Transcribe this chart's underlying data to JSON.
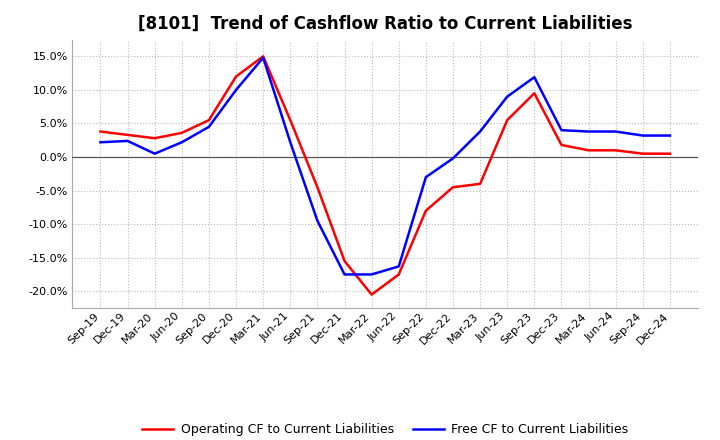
{
  "title": "[8101]  Trend of Cashflow Ratio to Current Liabilities",
  "x_labels": [
    "Sep-19",
    "Dec-19",
    "Mar-20",
    "Jun-20",
    "Sep-20",
    "Dec-20",
    "Mar-21",
    "Jun-21",
    "Sep-21",
    "Dec-21",
    "Mar-22",
    "Jun-22",
    "Sep-22",
    "Dec-22",
    "Mar-23",
    "Jun-23",
    "Sep-23",
    "Dec-23",
    "Mar-24",
    "Jun-24",
    "Sep-24",
    "Dec-24"
  ],
  "operating_cf": [
    0.038,
    0.033,
    0.028,
    0.036,
    0.055,
    0.12,
    0.15,
    0.055,
    -0.045,
    -0.155,
    -0.205,
    -0.175,
    -0.08,
    -0.045,
    -0.04,
    0.055,
    0.095,
    0.018,
    0.01,
    0.01,
    0.005,
    0.005
  ],
  "free_cf": [
    0.022,
    0.024,
    0.005,
    0.022,
    0.045,
    0.1,
    0.148,
    0.022,
    -0.095,
    -0.175,
    -0.175,
    -0.163,
    -0.03,
    -0.002,
    0.038,
    0.09,
    0.119,
    0.04,
    0.038,
    0.038,
    0.032,
    0.032
  ],
  "operating_color": "#ff0000",
  "free_color": "#0000ff",
  "ylim": [
    -0.225,
    0.175
  ],
  "yticks": [
    -0.2,
    -0.15,
    -0.1,
    -0.05,
    0.0,
    0.05,
    0.1,
    0.15
  ],
  "background_color": "#ffffff",
  "plot_bg_color": "#ffffff",
  "grid_color": "#bbbbbb",
  "legend_op": "Operating CF to Current Liabilities",
  "legend_free": "Free CF to Current Liabilities",
  "linewidth": 1.8,
  "title_fontsize": 12,
  "tick_fontsize": 8,
  "legend_fontsize": 9
}
